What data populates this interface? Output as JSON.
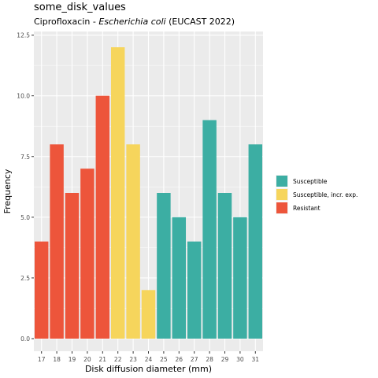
{
  "chart_data": {
    "type": "bar",
    "title": "some_disk_values",
    "subtitle": {
      "prefix": "Ciprofloxacin - ",
      "italic": "Escherichia coli",
      "suffix": " (EUCAST 2022)"
    },
    "xlabel": "Disk diffusion diameter (mm)",
    "ylabel": "Frequency",
    "ylim": [
      0,
      12.6
    ],
    "yticks": [
      0.0,
      2.5,
      5.0,
      7.5,
      10.0,
      12.5
    ],
    "ytick_labels": [
      "0.0",
      "2.5",
      "5.0",
      "7.5",
      "10.0",
      "12.5"
    ],
    "grid": true,
    "legend_position": "right",
    "categories": [
      "17",
      "18",
      "19",
      "20",
      "21",
      "22",
      "23",
      "24",
      "25",
      "26",
      "27",
      "28",
      "29",
      "30",
      "31"
    ],
    "values": [
      4,
      8,
      6,
      7,
      10,
      12,
      8,
      2,
      6,
      5,
      4,
      9,
      6,
      5,
      8
    ],
    "interpretation": [
      "Resistant",
      "Resistant",
      "Resistant",
      "Resistant",
      "Resistant",
      "Susceptible, incr. exp.",
      "Susceptible, incr. exp.",
      "Susceptible, incr. exp.",
      "Susceptible",
      "Susceptible",
      "Susceptible",
      "Susceptible",
      "Susceptible",
      "Susceptible",
      "Susceptible"
    ],
    "legend": [
      {
        "label": "Susceptible",
        "color": "#3CAEA3"
      },
      {
        "label": "Susceptible, incr. exp.",
        "color": "#F6D55C"
      },
      {
        "label": "Resistant",
        "color": "#ED553B"
      }
    ],
    "panel_background": "#EBEBEB",
    "grid_color": "#FFFFFF"
  }
}
